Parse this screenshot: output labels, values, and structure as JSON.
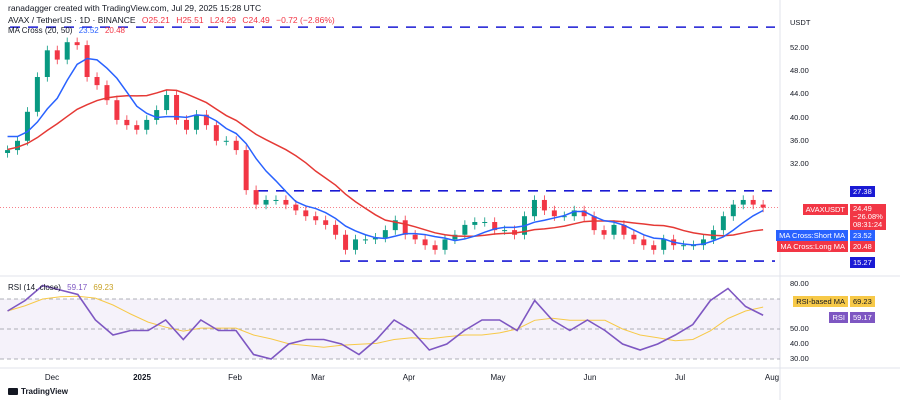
{
  "header": {
    "credit": "ranadagger created with TradingView.com, Jul 29, 2025 15:28 UTC",
    "symbol": "AVAX / TetherUS · 1D · BINANCE",
    "open": "O25.21",
    "high": "H25.51",
    "low": "L24.29",
    "close": "C24.49",
    "change": "−0.72 (−2.86%)",
    "ma_label": "MA Cross (20, 50)",
    "ma_short": "23.52",
    "ma_long": "20.48",
    "rsi_label": "RSI (14, close)",
    "rsi_value": "59.17",
    "rsi_ma": "69.23"
  },
  "currency": "USDT",
  "tags": {
    "resistance": "27.38",
    "support": "15.27",
    "symbol": "AVAXUSDT",
    "price": "24.49",
    "pct": "−26.08%",
    "countdown": "08:31:24",
    "short_ma_label": "MA Cross:Short MA",
    "short_ma": "23.52",
    "long_ma_label": "MA Cross:Long MA",
    "long_ma": "20.48",
    "rsi_ma_label": "RSI-based MA",
    "rsi_ma": "69.23",
    "rsi_label": "RSI",
    "rsi": "59.17"
  },
  "colors": {
    "up": "#089981",
    "down": "#f23645",
    "short_ma": "#2962ff",
    "long_ma": "#e53935",
    "rsi": "#7e57c2",
    "rsi_ma": "#f7c948",
    "levels": "#1a1ad4"
  },
  "footer": {
    "brand": "TradingView"
  },
  "chart_data": {
    "type": "candlestick",
    "x_start": "2024-11-16",
    "x_end": "2025-07-29",
    "x_ticks": [
      "Dec",
      "2025",
      "Feb",
      "Mar",
      "Apr",
      "May",
      "Jun",
      "Jul",
      "Aug"
    ],
    "y_ticks": [
      "52.00",
      "48.00",
      "44.00",
      "40.00",
      "36.00",
      "32.00"
    ],
    "rsi_ticks": [
      "80.00",
      "50.00",
      "40.00",
      "30.00"
    ],
    "closes": [
      34.4,
      36,
      41,
      47,
      51.6,
      50,
      53,
      52.5,
      47,
      45.6,
      43,
      39.6,
      38.7,
      37.9,
      39.6,
      41.3,
      43.9,
      39.6,
      37.9,
      40.5,
      38.7,
      36,
      36,
      34.4,
      27.5,
      25,
      25.8,
      25.8,
      25,
      24,
      23,
      22.3,
      21.5,
      19.8,
      17.2,
      19,
      19,
      19.3,
      20.6,
      22.3,
      19.8,
      19,
      18,
      17.2,
      19,
      19.8,
      21.5,
      22,
      22,
      20.6,
      20.6,
      19.8,
      23,
      25.8,
      24,
      23,
      23,
      24,
      23,
      20.6,
      19.8,
      21.5,
      19.8,
      19,
      18,
      17.2,
      19,
      18,
      18,
      18,
      19,
      20.6,
      23,
      25,
      25.8,
      25,
      24.49
    ],
    "rsi": [
      62,
      69,
      79,
      76,
      73,
      56,
      46,
      49,
      49,
      56,
      43,
      56,
      49,
      49,
      33,
      30,
      40,
      43,
      43,
      40,
      33,
      43,
      56,
      49,
      36,
      40,
      49,
      56,
      56,
      49,
      69,
      56,
      49,
      56,
      49,
      40,
      36,
      40,
      46,
      53,
      69,
      77,
      65,
      59.17
    ],
    "levels": {
      "resistance": 27.38,
      "support": 15.27,
      "top": 55.6
    },
    "last_price": 24.49
  }
}
